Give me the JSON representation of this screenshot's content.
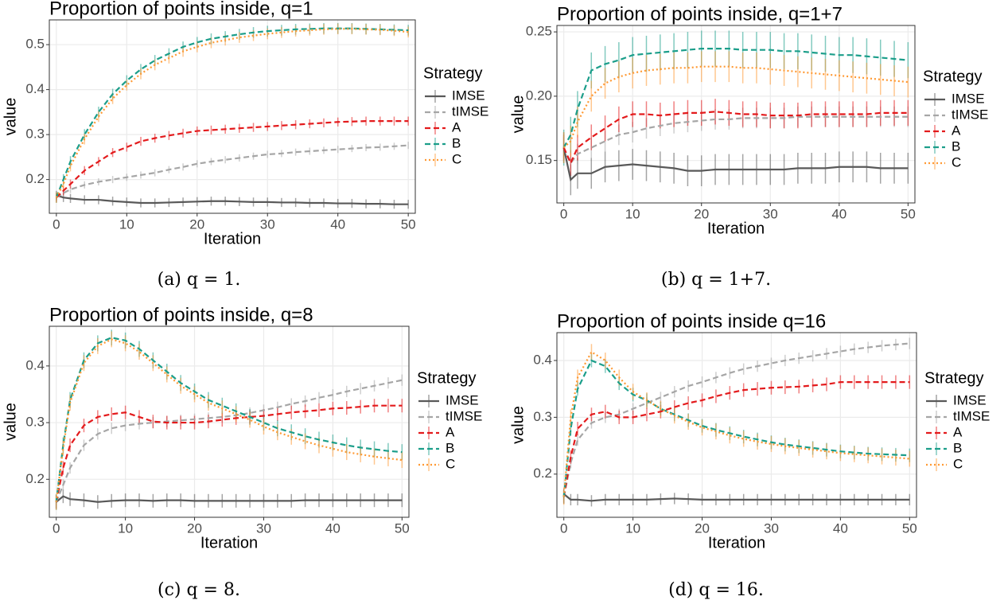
{
  "chart_data": [
    {
      "type": "line",
      "title": "Proportion of points inside, q=1",
      "x_label": "Iteration",
      "y_label": "value",
      "legend_title": "Strategy",
      "caption": "(a) q = 1.",
      "grid": true,
      "x": [
        0,
        1,
        2,
        4,
        6,
        8,
        10,
        12,
        14,
        16,
        18,
        20,
        22,
        24,
        26,
        28,
        30,
        32,
        34,
        36,
        38,
        40,
        42,
        44,
        46,
        48,
        50
      ],
      "xlim": [
        -1,
        51
      ],
      "xticks": [
        0,
        10,
        20,
        30,
        40,
        50
      ],
      "ylim": [
        0.125,
        0.555
      ],
      "yticks": [
        0.2,
        0.3,
        0.4,
        0.5
      ],
      "series": [
        {
          "name": "IMSE",
          "color": "#595959",
          "linestyle": "solid",
          "error": 0.01,
          "values": [
            0.165,
            0.16,
            0.158,
            0.155,
            0.155,
            0.152,
            0.15,
            0.148,
            0.148,
            0.149,
            0.15,
            0.151,
            0.152,
            0.152,
            0.151,
            0.15,
            0.15,
            0.149,
            0.149,
            0.148,
            0.148,
            0.147,
            0.147,
            0.146,
            0.146,
            0.145,
            0.145
          ]
        },
        {
          "name": "tIMSE",
          "color": "#a6a6a6",
          "linestyle": "dashed",
          "error": 0.008,
          "values": [
            0.16,
            0.17,
            0.178,
            0.188,
            0.195,
            0.2,
            0.205,
            0.21,
            0.215,
            0.222,
            0.228,
            0.235,
            0.24,
            0.244,
            0.248,
            0.252,
            0.256,
            0.258,
            0.261,
            0.263,
            0.265,
            0.267,
            0.269,
            0.271,
            0.272,
            0.274,
            0.276
          ]
        },
        {
          "name": "A",
          "color": "#e31a1c",
          "linestyle": "dashed",
          "error": 0.01,
          "values": [
            0.16,
            0.175,
            0.19,
            0.22,
            0.24,
            0.26,
            0.272,
            0.285,
            0.292,
            0.298,
            0.303,
            0.308,
            0.31,
            0.312,
            0.314,
            0.316,
            0.318,
            0.32,
            0.322,
            0.324,
            0.326,
            0.328,
            0.329,
            0.33,
            0.33,
            0.33,
            0.33
          ]
        },
        {
          "name": "B",
          "color": "#1b9e8a",
          "linestyle": "dashed",
          "error": 0.012,
          "values": [
            0.16,
            0.2,
            0.24,
            0.3,
            0.35,
            0.39,
            0.42,
            0.445,
            0.465,
            0.48,
            0.495,
            0.505,
            0.513,
            0.518,
            0.523,
            0.527,
            0.53,
            0.532,
            0.534,
            0.535,
            0.536,
            0.536,
            0.536,
            0.535,
            0.534,
            0.533,
            0.532
          ]
        },
        {
          "name": "C",
          "color": "#ff9933",
          "linestyle": "dotted",
          "error": 0.012,
          "values": [
            0.16,
            0.19,
            0.23,
            0.29,
            0.34,
            0.38,
            0.41,
            0.435,
            0.455,
            0.47,
            0.485,
            0.495,
            0.504,
            0.51,
            0.516,
            0.52,
            0.524,
            0.527,
            0.53,
            0.532,
            0.534,
            0.535,
            0.535,
            0.534,
            0.533,
            0.531,
            0.528
          ]
        }
      ]
    },
    {
      "type": "line",
      "title": "Proportion of points inside, q=1+7",
      "x_label": "Iteration",
      "y_label": "value",
      "legend_title": "Strategy",
      "caption": "(b) q = 1+7.",
      "grid": true,
      "x": [
        0,
        1,
        2,
        4,
        6,
        8,
        10,
        12,
        14,
        16,
        18,
        20,
        22,
        24,
        26,
        28,
        30,
        32,
        34,
        36,
        38,
        40,
        42,
        44,
        46,
        48,
        50
      ],
      "xlim": [
        -1,
        51
      ],
      "xticks": [
        0,
        10,
        20,
        30,
        40,
        50
      ],
      "ylim": [
        0.117,
        0.255
      ],
      "yticks": [
        0.15,
        {
          "value": 0.2,
          "label": "0.20"
        },
        0.25
      ],
      "series": [
        {
          "name": "IMSE",
          "color": "#595959",
          "linestyle": "solid",
          "error": 0.012,
          "values": [
            0.16,
            0.135,
            0.14,
            0.14,
            0.145,
            0.146,
            0.147,
            0.146,
            0.145,
            0.144,
            0.142,
            0.142,
            0.143,
            0.143,
            0.143,
            0.143,
            0.143,
            0.143,
            0.144,
            0.144,
            0.144,
            0.145,
            0.145,
            0.145,
            0.144,
            0.144,
            0.144
          ]
        },
        {
          "name": "tIMSE",
          "color": "#a6a6a6",
          "linestyle": "dashed",
          "error": 0.008,
          "values": [
            0.16,
            0.148,
            0.155,
            0.16,
            0.165,
            0.17,
            0.172,
            0.175,
            0.177,
            0.179,
            0.18,
            0.181,
            0.182,
            0.182,
            0.183,
            0.183,
            0.183,
            0.183,
            0.184,
            0.184,
            0.184,
            0.184,
            0.184,
            0.184,
            0.184,
            0.184,
            0.184
          ]
        },
        {
          "name": "A",
          "color": "#e31a1c",
          "linestyle": "dashed",
          "error": 0.01,
          "values": [
            0.16,
            0.148,
            0.16,
            0.168,
            0.175,
            0.182,
            0.186,
            0.186,
            0.185,
            0.186,
            0.187,
            0.187,
            0.188,
            0.187,
            0.186,
            0.186,
            0.185,
            0.185,
            0.185,
            0.186,
            0.186,
            0.186,
            0.186,
            0.186,
            0.187,
            0.187,
            0.187
          ]
        },
        {
          "name": "B",
          "color": "#1b9e8a",
          "linestyle": "dashed",
          "error": 0.014,
          "values": [
            0.16,
            0.17,
            0.19,
            0.22,
            0.225,
            0.228,
            0.232,
            0.233,
            0.234,
            0.235,
            0.236,
            0.237,
            0.237,
            0.237,
            0.236,
            0.236,
            0.236,
            0.235,
            0.235,
            0.234,
            0.233,
            0.232,
            0.232,
            0.231,
            0.23,
            0.229,
            0.228
          ]
        },
        {
          "name": "C",
          "color": "#ff9933",
          "linestyle": "dotted",
          "error": 0.012,
          "values": [
            0.16,
            0.165,
            0.18,
            0.2,
            0.21,
            0.215,
            0.218,
            0.22,
            0.221,
            0.222,
            0.222,
            0.223,
            0.223,
            0.223,
            0.222,
            0.222,
            0.221,
            0.22,
            0.219,
            0.218,
            0.217,
            0.216,
            0.215,
            0.214,
            0.213,
            0.212,
            0.211
          ]
        }
      ]
    },
    {
      "type": "line",
      "title": "Proportion of points inside, q=8",
      "x_label": "Iteration",
      "y_label": "value",
      "legend_title": "Strategy",
      "caption": "(c) q = 8.",
      "grid": true,
      "x": [
        0,
        1,
        2,
        4,
        6,
        8,
        10,
        12,
        14,
        16,
        18,
        20,
        22,
        24,
        26,
        28,
        30,
        32,
        34,
        36,
        38,
        40,
        42,
        44,
        46,
        48,
        50
      ],
      "xlim": [
        -1,
        51
      ],
      "xticks": [
        0,
        10,
        20,
        30,
        40,
        50
      ],
      "ylim": [
        0.133,
        0.47
      ],
      "yticks": [
        0.2,
        0.3,
        0.4
      ],
      "series": [
        {
          "name": "IMSE",
          "color": "#595959",
          "linestyle": "solid",
          "error": 0.012,
          "values": [
            0.16,
            0.17,
            0.165,
            0.163,
            0.16,
            0.162,
            0.163,
            0.163,
            0.162,
            0.163,
            0.163,
            0.162,
            0.162,
            0.162,
            0.162,
            0.162,
            0.162,
            0.162,
            0.162,
            0.163,
            0.163,
            0.163,
            0.163,
            0.163,
            0.163,
            0.163,
            0.163
          ]
        },
        {
          "name": "tIMSE",
          "color": "#a6a6a6",
          "linestyle": "dashed",
          "error": 0.01,
          "values": [
            0.16,
            0.19,
            0.22,
            0.26,
            0.28,
            0.29,
            0.295,
            0.298,
            0.3,
            0.302,
            0.304,
            0.306,
            0.308,
            0.31,
            0.313,
            0.317,
            0.322,
            0.327,
            0.333,
            0.338,
            0.344,
            0.349,
            0.355,
            0.36,
            0.365,
            0.37,
            0.375
          ]
        },
        {
          "name": "A",
          "color": "#e31a1c",
          "linestyle": "dashed",
          "error": 0.012,
          "values": [
            0.16,
            0.22,
            0.26,
            0.295,
            0.31,
            0.315,
            0.318,
            0.31,
            0.302,
            0.3,
            0.3,
            0.3,
            0.302,
            0.305,
            0.308,
            0.31,
            0.312,
            0.315,
            0.318,
            0.32,
            0.322,
            0.325,
            0.326,
            0.328,
            0.33,
            0.33,
            0.33
          ]
        },
        {
          "name": "B",
          "color": "#1b9e8a",
          "linestyle": "dashed",
          "error": 0.014,
          "values": [
            0.16,
            0.26,
            0.34,
            0.41,
            0.44,
            0.45,
            0.445,
            0.43,
            0.41,
            0.39,
            0.37,
            0.355,
            0.34,
            0.33,
            0.32,
            0.31,
            0.3,
            0.29,
            0.283,
            0.276,
            0.27,
            0.265,
            0.26,
            0.256,
            0.253,
            0.25,
            0.248
          ]
        },
        {
          "name": "C",
          "color": "#ff9933",
          "linestyle": "dotted",
          "error": 0.014,
          "values": [
            0.16,
            0.255,
            0.335,
            0.405,
            0.435,
            0.447,
            0.44,
            0.425,
            0.405,
            0.385,
            0.365,
            0.35,
            0.335,
            0.325,
            0.315,
            0.305,
            0.293,
            0.283,
            0.275,
            0.267,
            0.26,
            0.254,
            0.248,
            0.244,
            0.24,
            0.237,
            0.234
          ]
        }
      ]
    },
    {
      "type": "line",
      "title": "Proportion of points inside q=16",
      "x_label": "Iteration",
      "y_label": "value",
      "legend_title": "Strategy",
      "caption": "(d) q = 16.",
      "grid": true,
      "x": [
        0,
        1,
        2,
        4,
        6,
        8,
        10,
        12,
        14,
        16,
        18,
        20,
        22,
        24,
        26,
        28,
        30,
        32,
        34,
        36,
        38,
        40,
        42,
        44,
        46,
        48,
        50
      ],
      "xlim": [
        -1,
        51
      ],
      "xticks": [
        0,
        10,
        20,
        30,
        40,
        50
      ],
      "ylim": [
        0.124,
        0.449
      ],
      "yticks": [
        0.2,
        0.3,
        0.4
      ],
      "series": [
        {
          "name": "IMSE",
          "color": "#595959",
          "linestyle": "solid",
          "error": 0.01,
          "values": [
            0.165,
            0.155,
            0.155,
            0.153,
            0.155,
            0.155,
            0.155,
            0.155,
            0.156,
            0.157,
            0.156,
            0.155,
            0.155,
            0.155,
            0.155,
            0.155,
            0.155,
            0.155,
            0.155,
            0.155,
            0.155,
            0.155,
            0.155,
            0.155,
            0.155,
            0.155,
            0.155
          ]
        },
        {
          "name": "tIMSE",
          "color": "#a6a6a6",
          "linestyle": "dashed",
          "error": 0.01,
          "values": [
            0.16,
            0.22,
            0.26,
            0.29,
            0.3,
            0.305,
            0.315,
            0.325,
            0.335,
            0.345,
            0.355,
            0.362,
            0.37,
            0.378,
            0.385,
            0.39,
            0.395,
            0.4,
            0.404,
            0.408,
            0.412,
            0.416,
            0.42,
            0.423,
            0.426,
            0.428,
            0.43
          ]
        },
        {
          "name": "A",
          "color": "#e31a1c",
          "linestyle": "dashed",
          "error": 0.012,
          "values": [
            0.16,
            0.23,
            0.28,
            0.305,
            0.31,
            0.3,
            0.3,
            0.305,
            0.31,
            0.318,
            0.325,
            0.33,
            0.337,
            0.343,
            0.348,
            0.35,
            0.352,
            0.353,
            0.354,
            0.356,
            0.358,
            0.362,
            0.362,
            0.362,
            0.362,
            0.362,
            0.362
          ]
        },
        {
          "name": "B",
          "color": "#1b9e8a",
          "linestyle": "dashed",
          "error": 0.012,
          "values": [
            0.16,
            0.28,
            0.35,
            0.4,
            0.39,
            0.36,
            0.34,
            0.33,
            0.315,
            0.305,
            0.295,
            0.285,
            0.278,
            0.272,
            0.266,
            0.261,
            0.256,
            0.252,
            0.249,
            0.246,
            0.243,
            0.24,
            0.238,
            0.236,
            0.235,
            0.234,
            0.233
          ]
        },
        {
          "name": "C",
          "color": "#ff9933",
          "linestyle": "dotted",
          "error": 0.014,
          "values": [
            0.16,
            0.3,
            0.37,
            0.415,
            0.4,
            0.37,
            0.345,
            0.33,
            0.315,
            0.303,
            0.292,
            0.282,
            0.275,
            0.268,
            0.262,
            0.257,
            0.253,
            0.249,
            0.246,
            0.243,
            0.24,
            0.237,
            0.235,
            0.233,
            0.231,
            0.229,
            0.227
          ]
        }
      ]
    }
  ]
}
